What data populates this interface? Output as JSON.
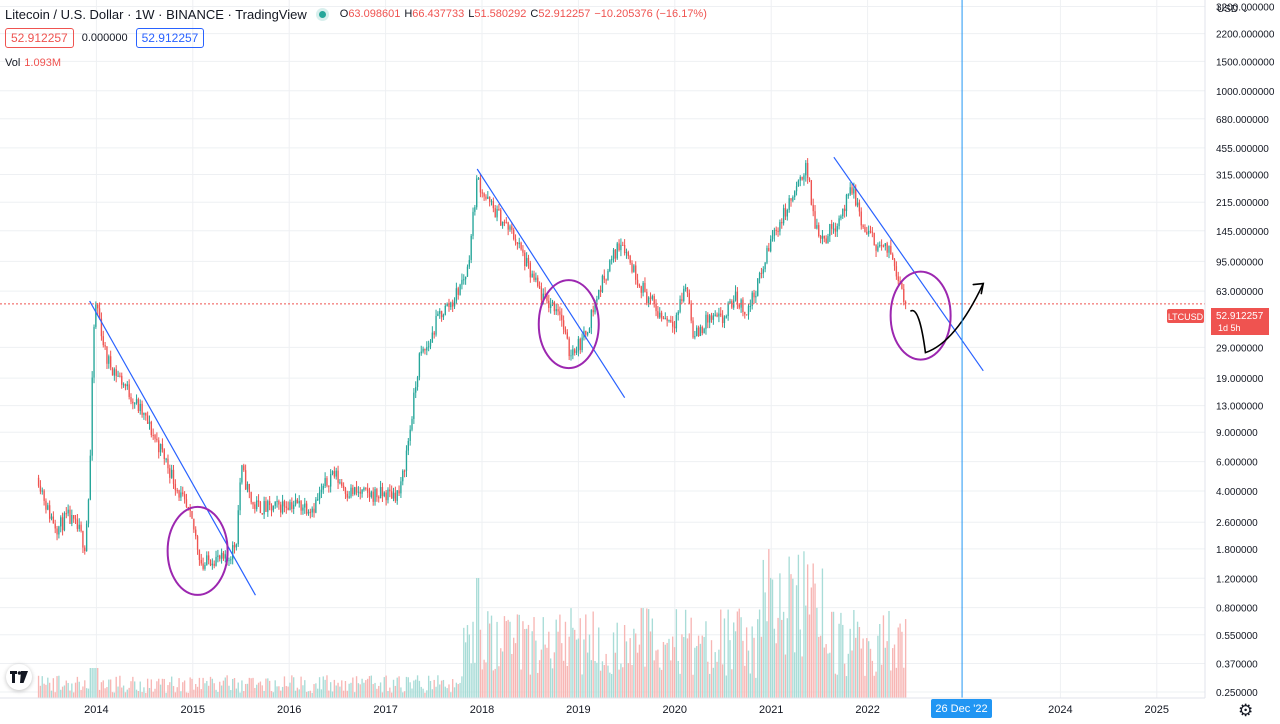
{
  "header": {
    "title": "Litecoin / U.S. Dollar · 1W · BINANCE · TradingView",
    "open_key": "O",
    "open_value": "63.098601",
    "high_key": "H",
    "high_value": "66.437733",
    "low_key": "L",
    "low_value": "51.580292",
    "close_key": "C",
    "close_value": "52.912257",
    "change": "−10.205376 (−16.17%)",
    "bid": "52.912257",
    "spread": "0.000000",
    "ask": "52.912257",
    "vol_label": "Vol",
    "vol_value": "1.093M"
  },
  "price_axis": {
    "currency": "USD",
    "currency_icon": "chevron-down-icon",
    "labels": [
      "3200.000000",
      "2200.000000",
      "1500.000000",
      "1000.000000",
      "680.000000",
      "455.000000",
      "315.000000",
      "215.000000",
      "145.000000",
      "95.000000",
      "63.000000",
      "29.000000",
      "19.000000",
      "13.000000",
      "9.000000",
      "6.000000",
      "4.000000",
      "2.600000",
      "1.800000",
      "1.200000",
      "0.800000",
      "0.550000",
      "0.370000",
      "0.250000"
    ]
  },
  "time_axis": {
    "labels": [
      "2014",
      "2015",
      "2016",
      "2017",
      "2018",
      "2019",
      "2020",
      "2021",
      "2022",
      "2024",
      "2025"
    ],
    "crosshair_label": "26 Dec '22"
  },
  "last_price": {
    "symbol": "LTCUSD",
    "value": "52.912257",
    "countdown": "1d 5h"
  },
  "colors": {
    "up": "#26a69a",
    "down": "#ef5350",
    "up_volume": "#a8dcd7",
    "down_volume": "#f7b6b4",
    "trendline": "#2962ff",
    "circle": "#9c27b0",
    "projection_arrow": "#000000",
    "crosshair": "#2196f3",
    "grid": "#eef0f3"
  },
  "icons": {
    "logo": "tradingview-logo-icon",
    "settings": "gear-icon"
  },
  "chart_data": {
    "type": "candlestick",
    "title": "Litecoin / U.S. Dollar · 1W · BINANCE · TradingView",
    "scale": "log",
    "ylim": [
      0.23,
      3500
    ],
    "xlim": [
      2013.0,
      2025.5
    ],
    "x_ticks": [
      2014,
      2015,
      2016,
      2017,
      2018,
      2019,
      2020,
      2021,
      2022,
      2024,
      2025
    ],
    "y_ticks": [
      3200,
      2200,
      1500,
      1000,
      680,
      455,
      315,
      215,
      145,
      95,
      63,
      29,
      19,
      13,
      9,
      6,
      4,
      2.6,
      1.8,
      1.2,
      0.8,
      0.55,
      0.37,
      0.25
    ],
    "grid": true,
    "price_series": [
      {
        "t": 2013.4,
        "close": 4.8
      },
      {
        "t": 2013.5,
        "close": 3.0
      },
      {
        "t": 2013.6,
        "close": 2.4
      },
      {
        "t": 2013.7,
        "close": 2.8
      },
      {
        "t": 2013.82,
        "close": 2.3
      },
      {
        "t": 2013.88,
        "close": 1.9
      },
      {
        "t": 2013.93,
        "close": 4.5
      },
      {
        "t": 2013.97,
        "close": 35
      },
      {
        "t": 2014.0,
        "close": 55
      },
      {
        "t": 2014.1,
        "close": 25
      },
      {
        "t": 2014.3,
        "close": 17
      },
      {
        "t": 2014.5,
        "close": 11
      },
      {
        "t": 2014.7,
        "close": 6.5
      },
      {
        "t": 2014.85,
        "close": 4.0
      },
      {
        "t": 2015.0,
        "close": 2.5
      },
      {
        "t": 2015.1,
        "close": 1.4
      },
      {
        "t": 2015.2,
        "close": 1.6
      },
      {
        "t": 2015.35,
        "close": 1.5
      },
      {
        "t": 2015.45,
        "close": 2.0
      },
      {
        "t": 2015.5,
        "close": 5.5
      },
      {
        "t": 2015.62,
        "close": 3.3
      },
      {
        "t": 2015.8,
        "close": 3.1
      },
      {
        "t": 2016.0,
        "close": 3.4
      },
      {
        "t": 2016.25,
        "close": 3.2
      },
      {
        "t": 2016.45,
        "close": 5.2
      },
      {
        "t": 2016.6,
        "close": 4.0
      },
      {
        "t": 2016.8,
        "close": 3.8
      },
      {
        "t": 2017.0,
        "close": 3.8
      },
      {
        "t": 2017.15,
        "close": 3.9
      },
      {
        "t": 2017.25,
        "close": 9.0
      },
      {
        "t": 2017.35,
        "close": 25
      },
      {
        "t": 2017.45,
        "close": 30
      },
      {
        "t": 2017.55,
        "close": 45
      },
      {
        "t": 2017.7,
        "close": 55
      },
      {
        "t": 2017.85,
        "close": 85
      },
      {
        "t": 2017.95,
        "close": 300
      },
      {
        "t": 2018.05,
        "close": 220
      },
      {
        "t": 2018.2,
        "close": 170
      },
      {
        "t": 2018.35,
        "close": 130
      },
      {
        "t": 2018.5,
        "close": 80
      },
      {
        "t": 2018.65,
        "close": 55
      },
      {
        "t": 2018.8,
        "close": 50
      },
      {
        "t": 2018.9,
        "close": 27
      },
      {
        "t": 2019.05,
        "close": 32
      },
      {
        "t": 2019.2,
        "close": 60
      },
      {
        "t": 2019.3,
        "close": 85
      },
      {
        "t": 2019.45,
        "close": 130
      },
      {
        "t": 2019.55,
        "close": 90
      },
      {
        "t": 2019.7,
        "close": 60
      },
      {
        "t": 2019.85,
        "close": 45
      },
      {
        "t": 2020.0,
        "close": 42
      },
      {
        "t": 2020.12,
        "close": 70
      },
      {
        "t": 2020.2,
        "close": 33
      },
      {
        "t": 2020.35,
        "close": 43
      },
      {
        "t": 2020.5,
        "close": 42
      },
      {
        "t": 2020.62,
        "close": 58
      },
      {
        "t": 2020.75,
        "close": 47
      },
      {
        "t": 2020.9,
        "close": 80
      },
      {
        "t": 2021.0,
        "close": 130
      },
      {
        "t": 2021.15,
        "close": 190
      },
      {
        "t": 2021.3,
        "close": 280
      },
      {
        "t": 2021.36,
        "close": 370
      },
      {
        "t": 2021.45,
        "close": 160
      },
      {
        "t": 2021.55,
        "close": 130
      },
      {
        "t": 2021.7,
        "close": 170
      },
      {
        "t": 2021.85,
        "close": 260
      },
      {
        "t": 2021.95,
        "close": 150
      },
      {
        "t": 2022.1,
        "close": 120
      },
      {
        "t": 2022.25,
        "close": 105
      },
      {
        "t": 2022.33,
        "close": 75
      },
      {
        "t": 2022.4,
        "close": 52.9
      }
    ],
    "annotations": [
      {
        "type": "trendline",
        "from": [
          2013.93,
          55
        ],
        "to": [
          2015.65,
          0.95
        ]
      },
      {
        "type": "trendline",
        "from": [
          2017.95,
          340
        ],
        "to": [
          2019.48,
          14.5
        ]
      },
      {
        "type": "trendline",
        "from": [
          2021.65,
          400
        ],
        "to": [
          2023.2,
          21
        ]
      },
      {
        "type": "ellipse",
        "center": [
          2015.05,
          1.75
        ]
      },
      {
        "type": "ellipse",
        "center": [
          2018.9,
          40
        ]
      },
      {
        "type": "ellipse",
        "center": [
          2022.55,
          45
        ]
      },
      {
        "type": "projection-arrow",
        "points": [
          [
            2022.45,
            48
          ],
          [
            2022.6,
            27
          ],
          [
            2023.2,
            70
          ]
        ]
      },
      {
        "type": "vertical-line",
        "x": 2022.98
      }
    ]
  }
}
